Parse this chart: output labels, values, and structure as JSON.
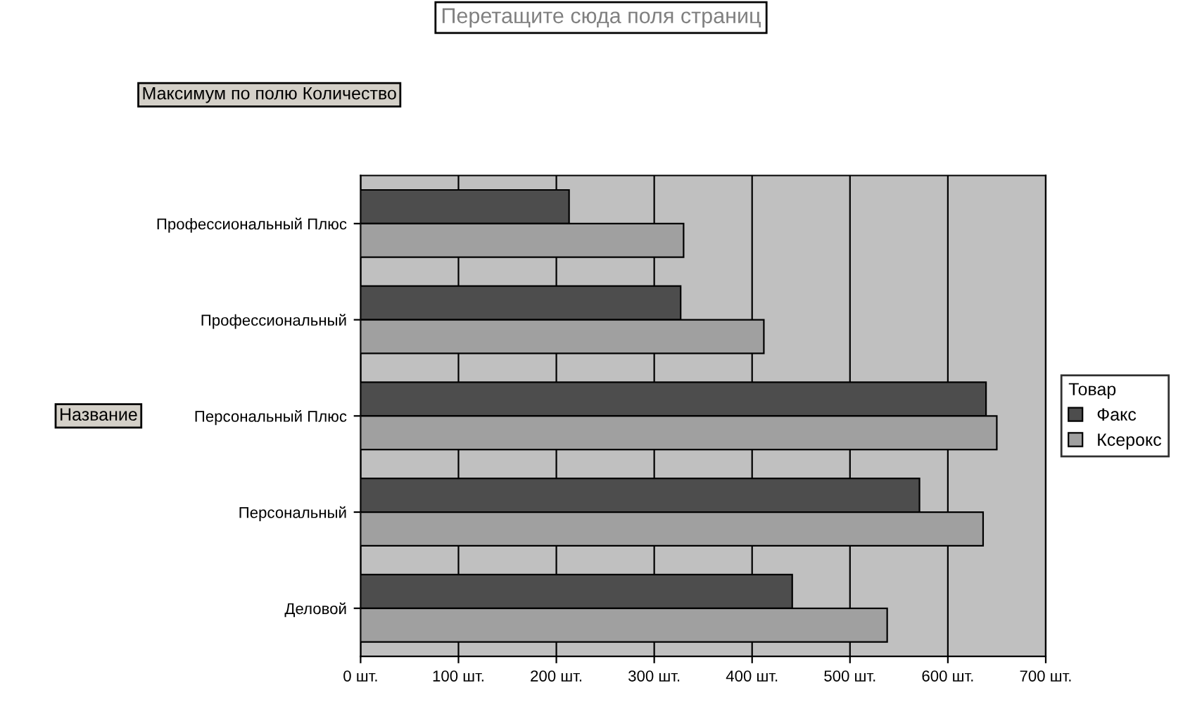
{
  "chart_data": {
    "type": "bar",
    "orientation": "horizontal",
    "title": "Перетащите сюда поля страниц",
    "categories": [
      "Профессиональный Плюс",
      "Профессиональный",
      "Персональный Плюс",
      "Персональный",
      "Деловой"
    ],
    "series": [
      {
        "name": "Факс",
        "color": "#4d4d4d",
        "values": [
          213,
          327,
          639,
          571,
          441
        ]
      },
      {
        "name": "Ксерокс",
        "color": "#a0a0a0",
        "values": [
          330,
          412,
          650,
          636,
          538
        ]
      }
    ],
    "xlim": [
      0,
      700
    ],
    "xticks": [
      {
        "value": 0,
        "label": "0 шт."
      },
      {
        "value": 100,
        "label": "100 шт."
      },
      {
        "value": 200,
        "label": "200 шт."
      },
      {
        "value": 300,
        "label": "300 шт."
      },
      {
        "value": 400,
        "label": "400 шт."
      },
      {
        "value": 500,
        "label": "500 шт."
      },
      {
        "value": 600,
        "label": "600 шт."
      },
      {
        "value": 700,
        "label": "700 шт."
      }
    ],
    "ylabel": "Название",
    "legend_title": "Товар",
    "legend": "right",
    "annotations": [
      "Максимум по полю Количество"
    ],
    "grid": "x"
  }
}
